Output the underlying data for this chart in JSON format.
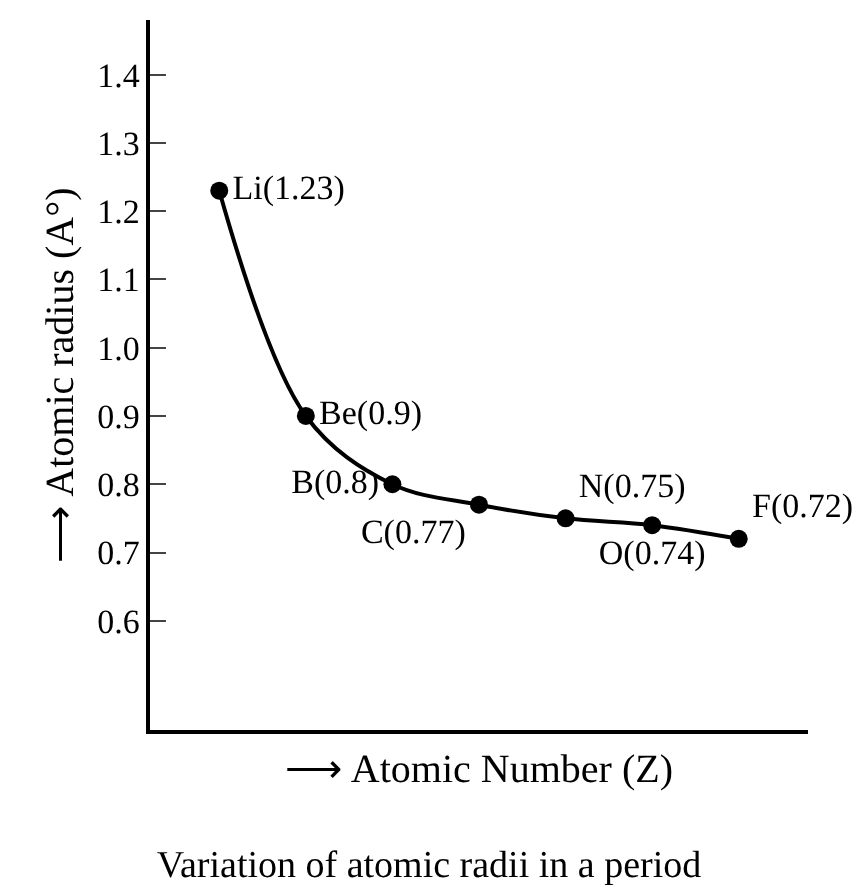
{
  "chart_data": {
    "type": "line",
    "title": "Variation of atomic radii in a period",
    "xlabel": "⟶ Atomic Number (Z)",
    "ylabel": "⟶ Atomic radius (A°)",
    "categories": [
      null,
      null,
      null,
      null,
      null,
      null,
      null
    ],
    "series": [
      {
        "color": "#000000",
        "values": [
          1.23,
          0.9,
          0.8,
          0.77,
          0.75,
          0.74,
          0.72
        ],
        "value_labels": [
          "Li(1.23)",
          "Be(0.9)",
          "B(0.8)",
          "C(0.77)",
          "N(0.75)",
          "O(0.74)",
          "F(0.72)"
        ]
      }
    ],
    "ylim": [
      0.44,
      1.48
    ],
    "yticks": [
      {
        "value": 0.6,
        "label": "0.6"
      },
      {
        "value": 0.7,
        "label": "0.7"
      },
      {
        "value": 0.8,
        "label": "0.8"
      },
      {
        "value": 0.9,
        "label": "0.9"
      },
      {
        "value": 1.0,
        "label": "1.0"
      },
      {
        "value": 1.1,
        "label": "1.1"
      },
      {
        "value": 1.2,
        "label": "1.2"
      },
      {
        "value": 1.3,
        "label": "1.3"
      },
      {
        "value": 1.4,
        "label": "1.4"
      }
    ],
    "legend": false,
    "marker": "circle",
    "line_style": "solid"
  }
}
